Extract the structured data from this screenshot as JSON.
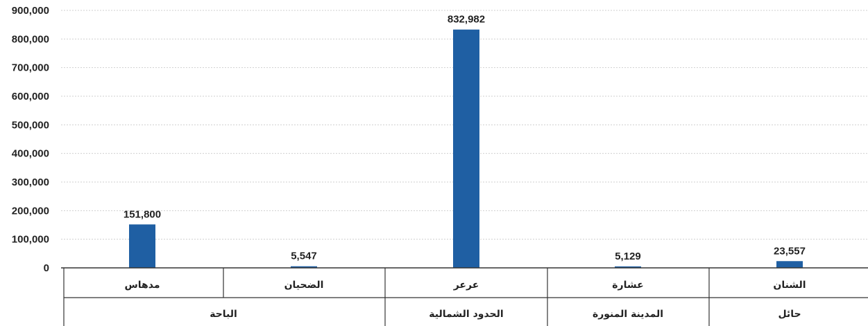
{
  "chart_data": {
    "type": "bar",
    "categories": [
      "الشنان",
      "عشارة",
      "عرعر",
      "الضحيان",
      "مدهاس"
    ],
    "groups": [
      {
        "label": "حائل",
        "categories": [
          "الشنان"
        ]
      },
      {
        "label": "المدينة المنورة",
        "categories": [
          "عشارة"
        ]
      },
      {
        "label": "الحدود الشمالية",
        "categories": [
          "عرعر"
        ]
      },
      {
        "label": "الباحة",
        "categories": [
          "الضحيان",
          "مدهاس"
        ]
      }
    ],
    "series": [
      {
        "values": [
          23557,
          5129,
          832982,
          5547,
          151800
        ],
        "color": "#1f5fa3"
      }
    ],
    "data_labels": [
      "23,557",
      "5,129",
      "832,982",
      "5,547",
      "151,800"
    ],
    "category_order": "right-to-left",
    "yticks": [
      "0",
      "100,000",
      "200,000",
      "300,000",
      "400,000",
      "500,000",
      "600,000",
      "700,000",
      "800,000",
      "900,000"
    ],
    "ylim": [
      0,
      900000
    ],
    "grid": true,
    "title": "",
    "xlabel": "",
    "ylabel": ""
  }
}
